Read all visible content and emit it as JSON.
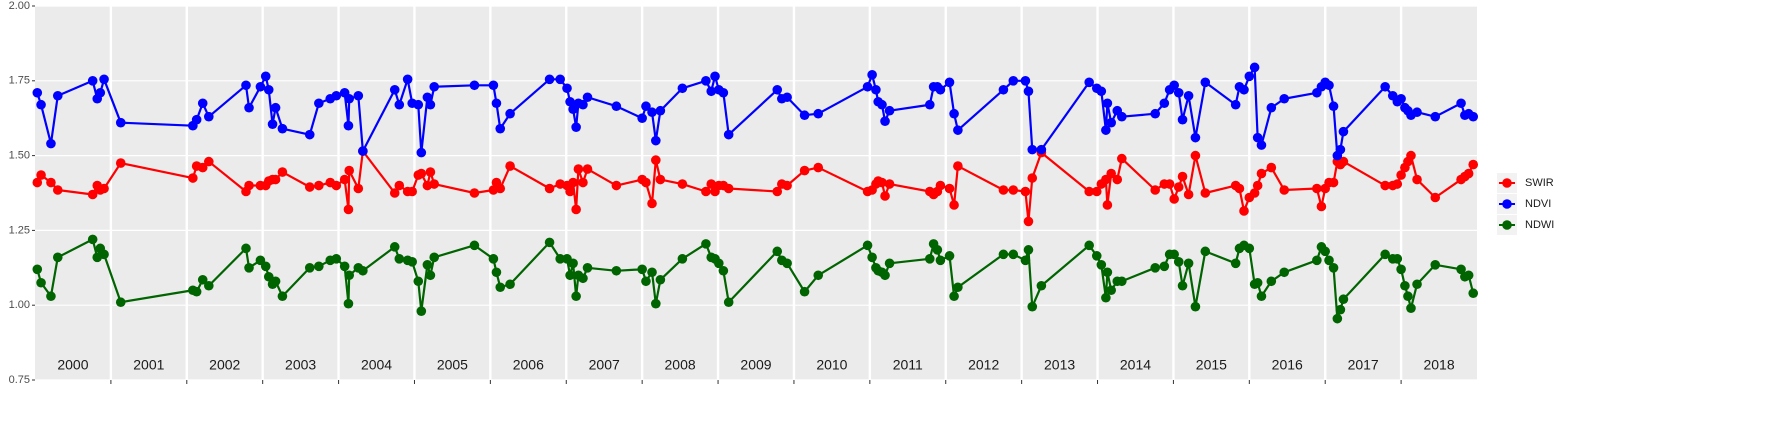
{
  "chart_data": {
    "type": "line",
    "x": [
      2000.03,
      2000.08,
      2000.21,
      2000.3,
      2000.76,
      2000.82,
      2000.86,
      2000.91,
      2001.13,
      2002.08,
      2002.13,
      2002.21,
      2002.29,
      2002.78,
      2002.82,
      2002.97,
      2003.04,
      2003.08,
      2003.13,
      2003.17,
      2003.26,
      2003.62,
      2003.74,
      2003.89,
      2003.97,
      2004.08,
      2004.13,
      2004.14,
      2004.26,
      2004.32,
      2004.74,
      2004.8,
      2004.91,
      2004.97,
      2005.05,
      2005.09,
      2005.17,
      2005.21,
      2005.26,
      2005.79,
      2006.04,
      2006.08,
      2006.13,
      2006.26,
      2006.78,
      2006.92,
      2007.01,
      2007.05,
      2007.09,
      2007.13,
      2007.16,
      2007.22,
      2007.28,
      2007.66,
      2008.0,
      2008.05,
      2008.13,
      2008.18,
      2008.24,
      2008.53,
      2008.84,
      2008.91,
      2008.96,
      2009.01,
      2009.07,
      2009.14,
      2009.78,
      2009.84,
      2009.91,
      2010.14,
      2010.32,
      2010.97,
      2011.03,
      2011.08,
      2011.11,
      2011.16,
      2011.2,
      2011.26,
      2011.79,
      2011.84,
      2011.89,
      2011.93,
      2012.05,
      2012.11,
      2012.16,
      2012.76,
      2012.89,
      2013.05,
      2013.09,
      2013.14,
      2013.26,
      2013.89,
      2013.99,
      2014.05,
      2014.11,
      2014.13,
      2014.18,
      2014.26,
      2014.32,
      2014.76,
      2014.88,
      2014.95,
      2015.01,
      2015.07,
      2015.12,
      2015.2,
      2015.29,
      2015.42,
      2015.82,
      2015.87,
      2015.93,
      2016.0,
      2016.07,
      2016.11,
      2016.16,
      2016.29,
      2016.46,
      2016.89,
      2016.95,
      2017.0,
      2017.05,
      2017.11,
      2017.16,
      2017.2,
      2017.24,
      2017.79,
      2017.89,
      2017.95,
      2018.0,
      2018.05,
      2018.09,
      2018.13,
      2018.21,
      2018.45,
      2018.79,
      2018.84,
      2018.89,
      2018.95
    ],
    "series": [
      {
        "name": "SWIR",
        "color": "#ff0000",
        "values": [
          1.41,
          1.435,
          1.41,
          1.385,
          1.37,
          1.4,
          1.385,
          1.39,
          1.475,
          1.425,
          1.465,
          1.46,
          1.48,
          1.38,
          1.4,
          1.4,
          1.4,
          1.415,
          1.42,
          1.42,
          1.445,
          1.395,
          1.4,
          1.41,
          1.4,
          1.42,
          1.32,
          1.45,
          1.39,
          1.515,
          1.375,
          1.4,
          1.38,
          1.38,
          1.435,
          1.44,
          1.4,
          1.445,
          1.405,
          1.375,
          1.385,
          1.41,
          1.39,
          1.465,
          1.39,
          1.405,
          1.4,
          1.38,
          1.41,
          1.32,
          1.455,
          1.41,
          1.455,
          1.4,
          1.42,
          1.41,
          1.34,
          1.485,
          1.42,
          1.405,
          1.38,
          1.405,
          1.38,
          1.4,
          1.4,
          1.39,
          1.38,
          1.405,
          1.4,
          1.45,
          1.46,
          1.38,
          1.385,
          1.405,
          1.415,
          1.41,
          1.365,
          1.405,
          1.38,
          1.37,
          1.38,
          1.4,
          1.39,
          1.335,
          1.465,
          1.385,
          1.385,
          1.38,
          1.28,
          1.425,
          1.51,
          1.38,
          1.38,
          1.405,
          1.42,
          1.335,
          1.44,
          1.42,
          1.49,
          1.385,
          1.405,
          1.405,
          1.355,
          1.395,
          1.43,
          1.37,
          1.5,
          1.375,
          1.4,
          1.39,
          1.315,
          1.36,
          1.375,
          1.4,
          1.44,
          1.46,
          1.385,
          1.39,
          1.33,
          1.39,
          1.41,
          1.41,
          1.48,
          1.47,
          1.48,
          1.4,
          1.4,
          1.405,
          1.435,
          1.46,
          1.48,
          1.5,
          1.42,
          1.36,
          1.42,
          1.43,
          1.44,
          1.47
        ]
      },
      {
        "name": "NDVI",
        "color": "#0000ff",
        "values": [
          1.71,
          1.67,
          1.54,
          1.7,
          1.75,
          1.69,
          1.71,
          1.755,
          1.61,
          1.6,
          1.62,
          1.675,
          1.63,
          1.735,
          1.66,
          1.73,
          1.765,
          1.72,
          1.605,
          1.66,
          1.59,
          1.57,
          1.675,
          1.69,
          1.7,
          1.71,
          1.6,
          1.69,
          1.7,
          1.515,
          1.72,
          1.67,
          1.755,
          1.675,
          1.67,
          1.51,
          1.695,
          1.67,
          1.73,
          1.735,
          1.735,
          1.675,
          1.59,
          1.64,
          1.755,
          1.755,
          1.725,
          1.68,
          1.655,
          1.595,
          1.675,
          1.67,
          1.695,
          1.665,
          1.625,
          1.665,
          1.645,
          1.55,
          1.65,
          1.725,
          1.75,
          1.715,
          1.765,
          1.72,
          1.71,
          1.57,
          1.72,
          1.69,
          1.695,
          1.635,
          1.64,
          1.73,
          1.77,
          1.72,
          1.68,
          1.67,
          1.615,
          1.65,
          1.67,
          1.73,
          1.73,
          1.72,
          1.745,
          1.64,
          1.585,
          1.72,
          1.75,
          1.75,
          1.715,
          1.52,
          1.52,
          1.745,
          1.725,
          1.715,
          1.585,
          1.675,
          1.61,
          1.65,
          1.63,
          1.64,
          1.675,
          1.72,
          1.735,
          1.71,
          1.62,
          1.7,
          1.56,
          1.745,
          1.67,
          1.73,
          1.72,
          1.765,
          1.795,
          1.56,
          1.535,
          1.66,
          1.69,
          1.71,
          1.73,
          1.745,
          1.735,
          1.665,
          1.5,
          1.52,
          1.58,
          1.73,
          1.7,
          1.68,
          1.69,
          1.66,
          1.65,
          1.635,
          1.645,
          1.63,
          1.675,
          1.635,
          1.64,
          1.63
        ]
      },
      {
        "name": "NDWI",
        "color": "#006400",
        "values": [
          1.12,
          1.075,
          1.03,
          1.16,
          1.22,
          1.16,
          1.19,
          1.17,
          1.01,
          1.05,
          1.045,
          1.085,
          1.065,
          1.19,
          1.125,
          1.15,
          1.13,
          1.095,
          1.07,
          1.08,
          1.03,
          1.125,
          1.13,
          1.15,
          1.155,
          1.13,
          1.005,
          1.1,
          1.125,
          1.115,
          1.195,
          1.155,
          1.15,
          1.145,
          1.08,
          0.98,
          1.135,
          1.1,
          1.16,
          1.2,
          1.155,
          1.11,
          1.06,
          1.07,
          1.21,
          1.155,
          1.155,
          1.1,
          1.14,
          1.03,
          1.1,
          1.09,
          1.125,
          1.115,
          1.12,
          1.08,
          1.11,
          1.005,
          1.085,
          1.155,
          1.205,
          1.16,
          1.155,
          1.14,
          1.115,
          1.01,
          1.18,
          1.15,
          1.14,
          1.045,
          1.1,
          1.2,
          1.16,
          1.125,
          1.115,
          1.11,
          1.1,
          1.14,
          1.155,
          1.205,
          1.185,
          1.15,
          1.165,
          1.03,
          1.06,
          1.17,
          1.17,
          1.15,
          1.185,
          0.995,
          1.065,
          1.2,
          1.165,
          1.135,
          1.025,
          1.11,
          1.05,
          1.08,
          1.08,
          1.125,
          1.13,
          1.17,
          1.17,
          1.145,
          1.065,
          1.14,
          0.995,
          1.18,
          1.14,
          1.19,
          1.2,
          1.19,
          1.07,
          1.075,
          1.03,
          1.08,
          1.11,
          1.15,
          1.195,
          1.18,
          1.15,
          1.125,
          0.955,
          0.985,
          1.02,
          1.17,
          1.155,
          1.155,
          1.12,
          1.065,
          1.03,
          0.99,
          1.07,
          1.135,
          1.12,
          1.095,
          1.1,
          1.04
        ]
      }
    ],
    "xlim": [
      2000,
      2019
    ],
    "xticks": [
      2001,
      2002,
      2003,
      2004,
      2005,
      2006,
      2007,
      2008,
      2009,
      2010,
      2011,
      2012,
      2013,
      2014,
      2015,
      2016,
      2017,
      2018
    ],
    "year_labels": [
      2000,
      2001,
      2002,
      2003,
      2004,
      2005,
      2006,
      2007,
      2008,
      2009,
      2010,
      2011,
      2012,
      2013,
      2014,
      2015,
      2016,
      2017,
      2018
    ],
    "ylim": [
      0.75,
      2.0
    ],
    "yticks": [
      0.75,
      {
        "value": 1,
        "label": "1.00"
      },
      1.25,
      {
        "value": 1.5,
        "label": "1.50"
      },
      1.75,
      {
        "value": 2,
        "label": "2.00"
      }
    ],
    "grid": true,
    "legend": "right"
  }
}
